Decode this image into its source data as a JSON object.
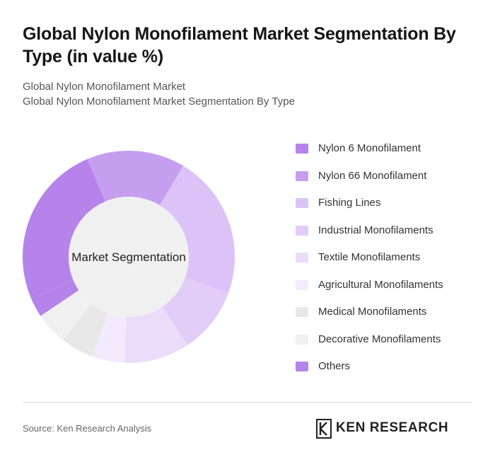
{
  "title": "Global Nylon Monofilament Market Segmentation By Type (in value %)",
  "subtitle_1": "Global Nylon Monofilament Market",
  "subtitle_2": "Global Nylon Monofilament Market Segmentation By Type",
  "source": "Source: Ken Research Analysis",
  "brand": "KEN RESEARCH",
  "chart_data": {
    "type": "pie",
    "variant": "donut",
    "center_label": "Market Segmentation",
    "legend_position": "right",
    "slices": [
      {
        "label": "Nylon 6 Monofilament",
        "value": 25,
        "color": "#b583ea"
      },
      {
        "label": "Nylon 66 Monofilament",
        "value": 15,
        "color": "#c59ef0"
      },
      {
        "label": "Fishing Lines",
        "value": 22,
        "color": "#dcc3f7"
      },
      {
        "label": "Industrial Monofilaments",
        "value": 10,
        "color": "#e2ccf8"
      },
      {
        "label": "Textile Monofilaments",
        "value": 10,
        "color": "#ebdcfa"
      },
      {
        "label": "Agricultural Monofilaments",
        "value": 5,
        "color": "#f3ebfd"
      },
      {
        "label": "Medical Monofilaments",
        "value": 5,
        "color": "#e8e8e8"
      },
      {
        "label": "Decorative Monofilaments",
        "value": 5,
        "color": "#f0f0f0"
      },
      {
        "label": "Others",
        "value": 3,
        "color": "#b583ea"
      }
    ]
  }
}
